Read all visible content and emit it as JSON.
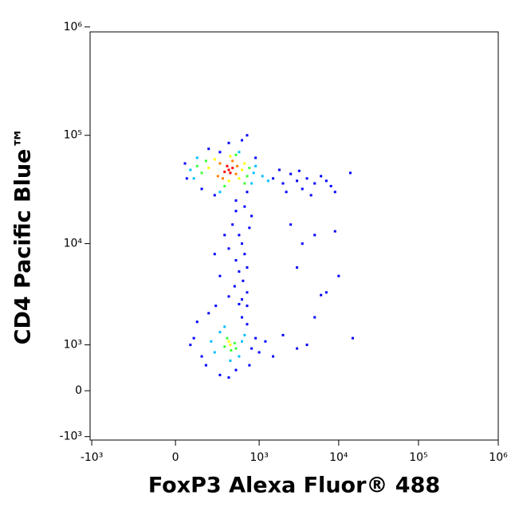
{
  "chart_data": {
    "type": "scatter",
    "x_label": "FoxP3 Alexa Fluor® 488",
    "y_label": "CD4 Pacific Blue™",
    "x_scale": "biexponential",
    "y_scale": "biexponential",
    "xlim": [
      -1050,
      1000000
    ],
    "ylim": [
      -1100,
      900000
    ],
    "xticks": [
      {
        "value": -1000,
        "label": "-10³"
      },
      0,
      {
        "value": 1000,
        "label": "10³"
      },
      {
        "value": 10000,
        "label": "10⁴"
      },
      {
        "value": 100000,
        "label": "10⁵"
      },
      {
        "value": 1000000,
        "label": "10⁶"
      }
    ],
    "yticks": [
      {
        "value": -1000,
        "label": "-10³"
      },
      0,
      {
        "value": 1000,
        "label": "10³"
      },
      {
        "value": 10000,
        "label": "10⁴"
      },
      {
        "value": 100000,
        "label": "10⁵"
      },
      {
        "value": 1000000,
        "label": "10⁶"
      }
    ],
    "series": [
      {
        "color": "#0000ff",
        "x": [
          60,
          1500,
          2000,
          2500,
          3000,
          3500,
          4000,
          5000,
          6000,
          7000,
          8000,
          2200,
          3200,
          4500,
          1800,
          200,
          400,
          600,
          700,
          300,
          900,
          250,
          500,
          700,
          150,
          50,
          14000,
          9000,
          500,
          450,
          550,
          600,
          400,
          650,
          500,
          700,
          550,
          620,
          480,
          700,
          600,
          400,
          550,
          350,
          750,
          250,
          800,
          300,
          650,
          2500,
          3500,
          5000,
          3000,
          7000,
          5000,
          9000,
          10000,
          15000,
          6000,
          150,
          100,
          800,
          700,
          180,
          500,
          300,
          900,
          120,
          200,
          600,
          80,
          1000,
          750,
          400,
          260,
          1200,
          1500,
          2000,
          3000,
          4000,
          700
        ],
        "y": [
          40000,
          40000,
          36000,
          44000,
          38000,
          32000,
          40000,
          36000,
          42000,
          38000,
          34000,
          30000,
          47000,
          28000,
          48000,
          75000,
          85000,
          90000,
          100000,
          70000,
          62000,
          28000,
          25000,
          30000,
          32000,
          55000,
          45000,
          30000,
          20000,
          15000,
          12000,
          10000,
          9000,
          8000,
          7000,
          6000,
          5500,
          4500,
          4000,
          3500,
          3000,
          3200,
          2700,
          12000,
          14000,
          8000,
          18000,
          5000,
          22000,
          15000,
          10000,
          12000,
          6000,
          3500,
          2000,
          13000,
          5000,
          1200,
          3300,
          700,
          1200,
          900,
          1700,
          500,
          400,
          300,
          1200,
          1800,
          2200,
          2000,
          1000,
          800,
          500,
          250,
          2600,
          1100,
          700,
          1300,
          900,
          1000,
          2600
        ]
      },
      {
        "color": "#00bfff",
        "x": [
          100,
          850,
          120,
          800,
          300,
          550,
          900,
          80,
          1100,
          1300,
          250,
          600,
          300,
          550,
          420,
          350,
          650,
          220
        ],
        "y": [
          40000,
          45000,
          62000,
          36000,
          30000,
          70000,
          52000,
          48000,
          42000,
          38000,
          800,
          1100,
          1400,
          700,
          600,
          1600,
          1300,
          1100
        ]
      },
      {
        "color": "#3cff3c",
        "x": [
          150,
          700,
          180,
          650,
          350,
          500,
          750,
          120,
          350,
          480,
          430,
          380,
          500
        ],
        "y": [
          45000,
          42000,
          58000,
          36000,
          34000,
          66000,
          50000,
          52000,
          950,
          1050,
          850,
          1200,
          900
        ]
      },
      {
        "color": "#ffff00",
        "x": [
          200,
          600,
          250,
          550,
          400,
          420,
          650,
          420,
          400
        ],
        "y": [
          50000,
          48000,
          60000,
          40000,
          38000,
          64000,
          55000,
          1000,
          1100
        ]
      },
      {
        "color": "#ff8000",
        "x": [
          300,
          500,
          520,
          280,
          450,
          330
        ],
        "y": [
          55000,
          44000,
          52000,
          42000,
          58000,
          40000
        ]
      },
      {
        "color": "#ff0000",
        "x": [
          400,
          450,
          350,
          420,
          380
        ],
        "y": [
          48000,
          50000,
          46000,
          45000,
          52000
        ]
      }
    ]
  }
}
